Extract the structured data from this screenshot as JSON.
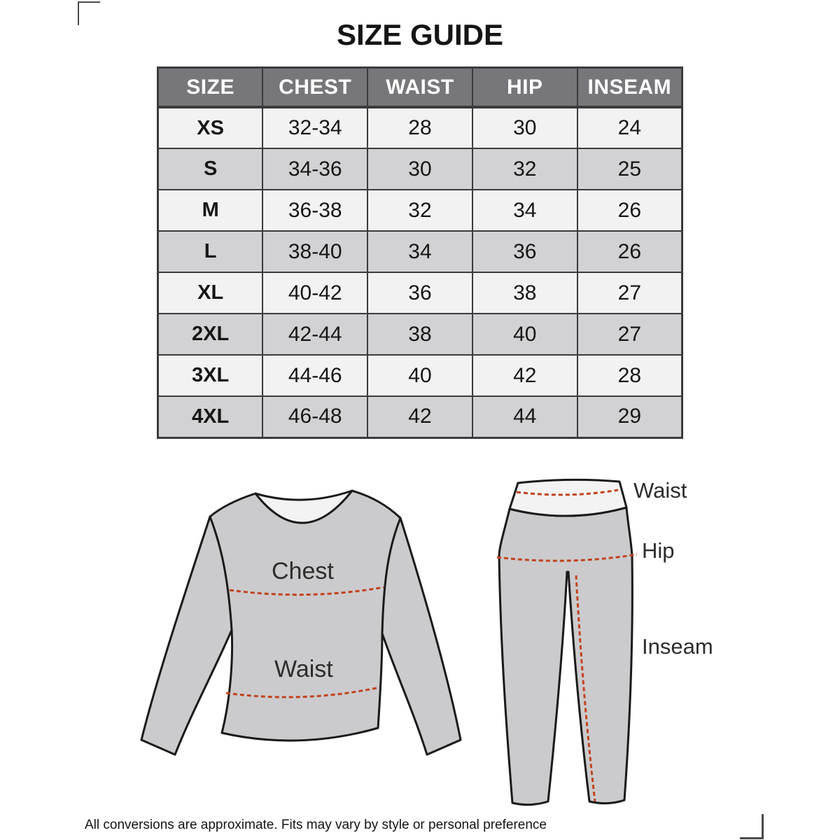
{
  "title": "SIZE GUIDE",
  "table": {
    "headers": [
      "SIZE",
      "CHEST",
      "WAIST",
      "HIP",
      "INSEAM"
    ],
    "rows": [
      [
        "XS",
        "32-34",
        "28",
        "30",
        "24"
      ],
      [
        "S",
        "34-36",
        "30",
        "32",
        "25"
      ],
      [
        "M",
        "36-38",
        "32",
        "34",
        "26"
      ],
      [
        "L",
        "38-40",
        "34",
        "36",
        "26"
      ],
      [
        "XL",
        "40-42",
        "36",
        "38",
        "27"
      ],
      [
        "2XL",
        "42-44",
        "38",
        "40",
        "27"
      ],
      [
        "3XL",
        "44-46",
        "40",
        "42",
        "28"
      ],
      [
        "4XL",
        "46-48",
        "42",
        "44",
        "29"
      ]
    ]
  },
  "diagram": {
    "shirt": {
      "chest_label": "Chest",
      "waist_label": "Waist"
    },
    "pants": {
      "waist_label": "Waist",
      "hip_label": "Hip",
      "inseam_label": "Inseam"
    }
  },
  "footer": "All conversions are approximate. Fits may vary by style or personal preference",
  "colors": {
    "header-bg": "#77777b",
    "header-text": "#ffffff",
    "row-light": "#f2f2f3",
    "row-dark": "#d2d2d4",
    "table-border": "#3b3b3d",
    "text": "#161616",
    "garment-fill": "#cbcbcd",
    "garment-light": "#f3f3f4",
    "outline": "#1a1a1a",
    "dash": "#c2431f",
    "crop-mark": "#4a4a4a"
  }
}
